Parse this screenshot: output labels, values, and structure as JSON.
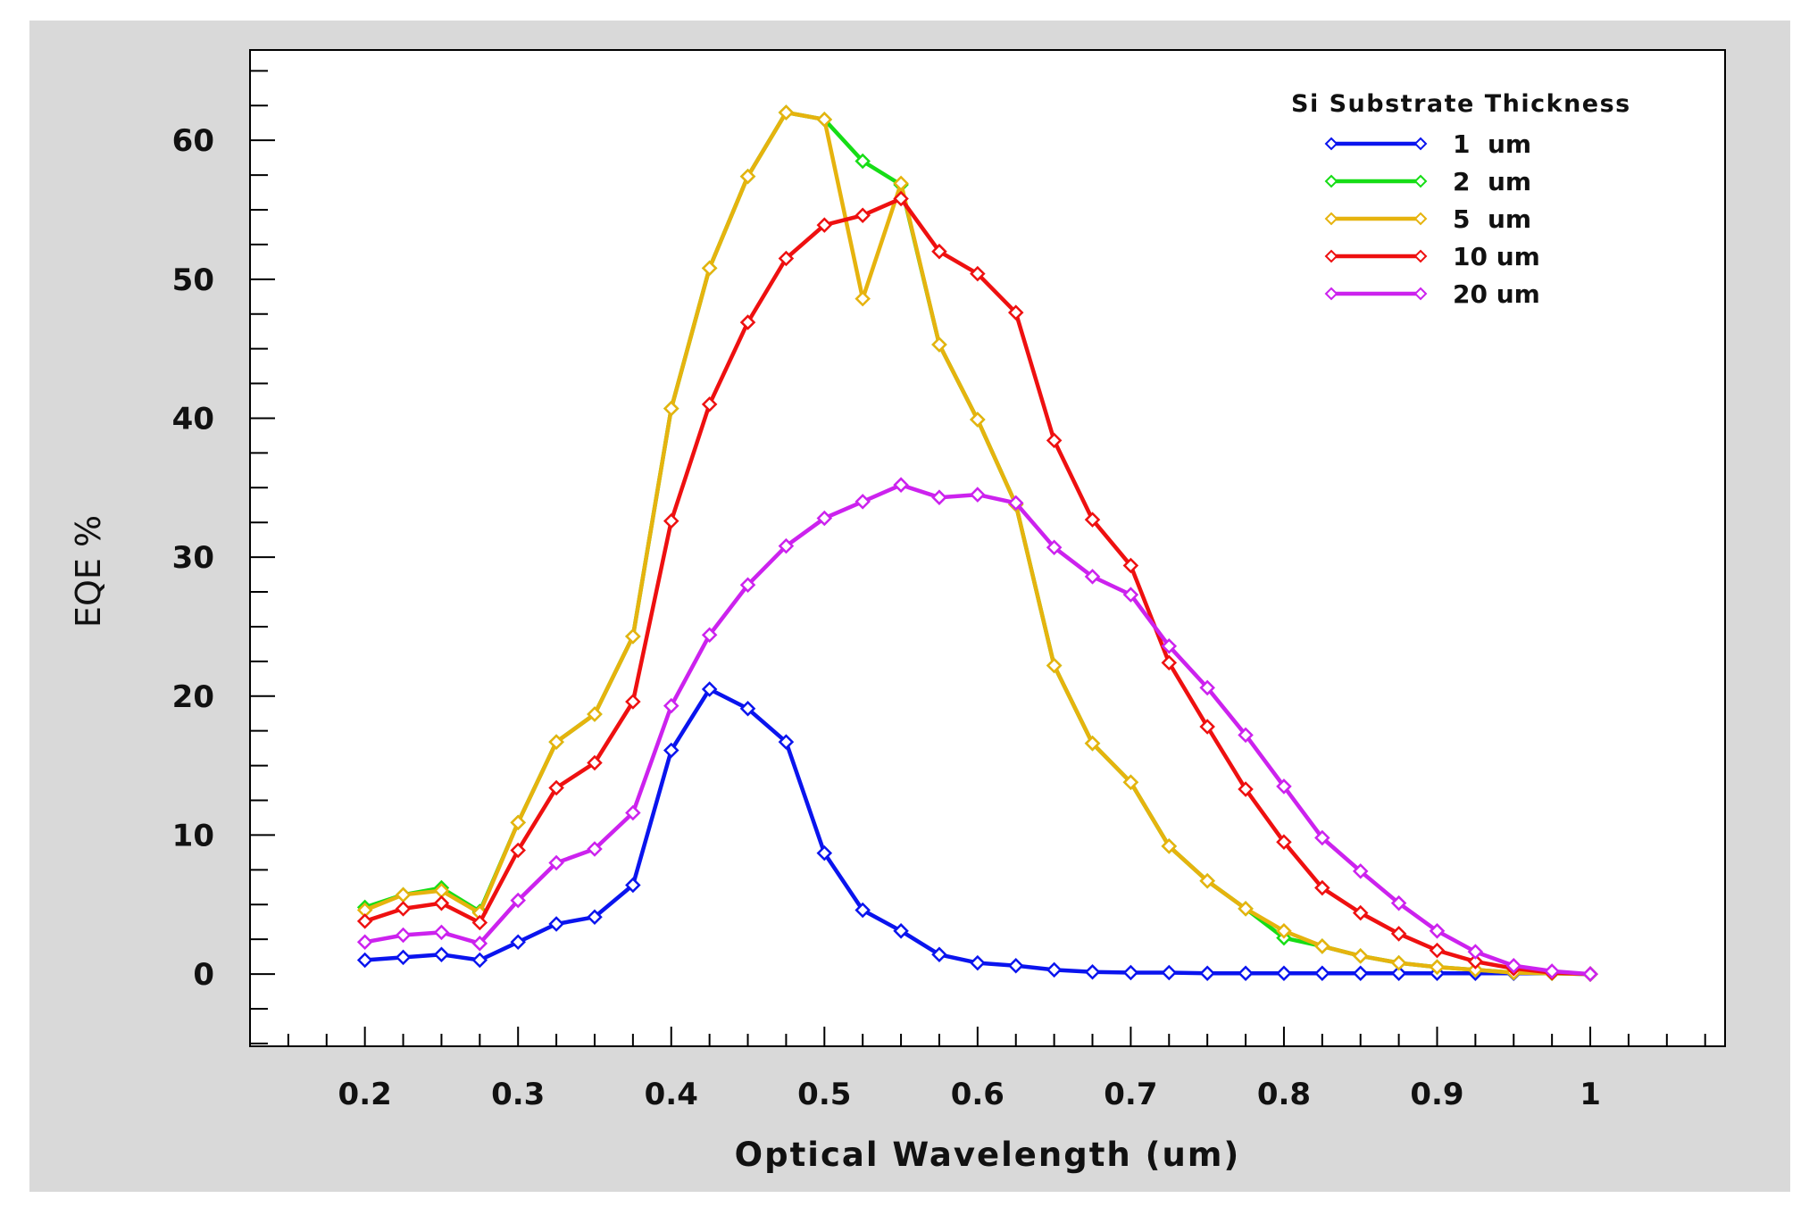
{
  "chart_data": {
    "type": "line",
    "title": "",
    "xlabel": "Optical Wavelength (um)",
    "ylabel": "EQE %",
    "xlim": [
      0.125,
      1.088
    ],
    "ylim": [
      -5.2,
      66.5
    ],
    "x_ticks": [
      0.2,
      0.3,
      0.4,
      0.5,
      0.6,
      0.7,
      0.8,
      0.9,
      1
    ],
    "x_tick_labels": [
      "0.2",
      "0.3",
      "0.4",
      "0.5",
      "0.6",
      "0.7",
      "0.8",
      "0.9",
      "1"
    ],
    "y_ticks": [
      0,
      10,
      20,
      30,
      40,
      50,
      60
    ],
    "y_tick_labels": [
      "0",
      "10",
      "20",
      "30",
      "40",
      "50",
      "60"
    ],
    "x_minor_step": 0.025,
    "y_minor_step": 2.5,
    "legend": {
      "title": "Si Substrate Thickness",
      "position": "top-right",
      "entries": [
        "1  um",
        "2  um",
        "5  um",
        "10 um",
        "20 um"
      ]
    },
    "colors": [
      "#0a14ee",
      "#16dd16",
      "#e6b30e",
      "#ee1010",
      "#cc22ee"
    ],
    "series": [
      {
        "name": "1  um",
        "x": [
          0.2,
          0.225,
          0.25,
          0.275,
          0.3,
          0.325,
          0.35,
          0.375,
          0.4,
          0.425,
          0.45,
          0.475,
          0.5,
          0.525,
          0.55,
          0.575,
          0.6,
          0.625,
          0.65,
          0.675,
          0.7,
          0.725,
          0.75,
          0.775,
          0.8,
          0.825,
          0.85,
          0.875,
          0.9,
          0.925,
          0.95,
          0.975,
          1.0
        ],
        "values": [
          1.0,
          1.2,
          1.4,
          1.0,
          2.3,
          3.6,
          4.1,
          6.4,
          16.1,
          20.5,
          19.1,
          16.7,
          8.7,
          4.6,
          3.1,
          1.4,
          0.8,
          0.6,
          0.3,
          0.15,
          0.1,
          0.1,
          0.05,
          0.05,
          0.05,
          0.05,
          0.05,
          0.05,
          0.05,
          0.05,
          0.05,
          0.05,
          0.0
        ]
      },
      {
        "name": "2  um",
        "x": [
          0.2,
          0.225,
          0.25,
          0.275,
          0.3,
          0.325,
          0.35,
          0.375,
          0.4,
          0.425,
          0.45,
          0.475,
          0.5,
          0.525,
          0.55,
          0.575,
          0.6,
          0.625,
          0.65,
          0.675,
          0.7,
          0.725,
          0.75,
          0.775,
          0.8,
          0.825,
          0.85,
          0.875,
          0.9,
          0.925,
          0.95,
          0.975,
          1.0
        ],
        "values": [
          4.8,
          5.7,
          6.2,
          4.5,
          10.9,
          16.7,
          18.7,
          24.3,
          40.7,
          50.8,
          57.4,
          62.0,
          61.5,
          58.5,
          56.8,
          45.3,
          39.9,
          33.8,
          22.2,
          16.6,
          13.8,
          9.2,
          6.7,
          4.7,
          2.6,
          2.0,
          1.3,
          0.8,
          0.5,
          0.3,
          0.1,
          0.05,
          0.0
        ]
      },
      {
        "name": "5  um",
        "x": [
          0.2,
          0.225,
          0.25,
          0.275,
          0.3,
          0.325,
          0.35,
          0.375,
          0.4,
          0.425,
          0.45,
          0.475,
          0.5,
          0.525,
          0.55,
          0.575,
          0.6,
          0.625,
          0.65,
          0.675,
          0.7,
          0.725,
          0.75,
          0.775,
          0.8,
          0.825,
          0.85,
          0.875,
          0.9,
          0.925,
          0.95,
          0.975,
          1.0
        ],
        "values": [
          4.6,
          5.7,
          6.0,
          4.4,
          10.9,
          16.7,
          18.7,
          24.3,
          40.7,
          50.8,
          57.4,
          62.0,
          61.5,
          48.6,
          56.9,
          45.3,
          39.9,
          33.8,
          22.2,
          16.6,
          13.8,
          9.2,
          6.7,
          4.7,
          3.1,
          2.0,
          1.3,
          0.8,
          0.5,
          0.3,
          0.1,
          0.05,
          0.0
        ]
      },
      {
        "name": "10 um",
        "x": [
          0.2,
          0.225,
          0.25,
          0.275,
          0.3,
          0.325,
          0.35,
          0.375,
          0.4,
          0.425,
          0.45,
          0.475,
          0.5,
          0.525,
          0.55,
          0.575,
          0.6,
          0.625,
          0.65,
          0.675,
          0.7,
          0.725,
          0.75,
          0.775,
          0.8,
          0.825,
          0.85,
          0.875,
          0.9,
          0.925,
          0.95,
          0.975,
          1.0
        ],
        "values": [
          3.8,
          4.7,
          5.1,
          3.7,
          8.9,
          13.4,
          15.2,
          19.6,
          32.6,
          41.0,
          46.9,
          51.5,
          53.9,
          54.6,
          55.8,
          52.0,
          50.4,
          47.6,
          38.4,
          32.7,
          29.4,
          22.4,
          17.8,
          13.3,
          9.5,
          6.2,
          4.4,
          2.9,
          1.7,
          0.9,
          0.4,
          0.1,
          0.0
        ]
      },
      {
        "name": "20 um",
        "x": [
          0.2,
          0.225,
          0.25,
          0.275,
          0.3,
          0.325,
          0.35,
          0.375,
          0.4,
          0.425,
          0.45,
          0.475,
          0.5,
          0.525,
          0.55,
          0.575,
          0.6,
          0.625,
          0.65,
          0.675,
          0.7,
          0.725,
          0.75,
          0.775,
          0.8,
          0.825,
          0.85,
          0.875,
          0.9,
          0.925,
          0.95,
          0.975,
          1.0
        ],
        "values": [
          2.3,
          2.8,
          3.0,
          2.2,
          5.3,
          8.0,
          9.0,
          11.6,
          19.3,
          24.4,
          28.0,
          30.8,
          32.8,
          34.0,
          35.2,
          34.3,
          34.5,
          33.9,
          30.7,
          28.6,
          27.3,
          23.6,
          20.6,
          17.2,
          13.5,
          9.8,
          7.4,
          5.1,
          3.1,
          1.6,
          0.6,
          0.2,
          0.0
        ]
      }
    ]
  }
}
